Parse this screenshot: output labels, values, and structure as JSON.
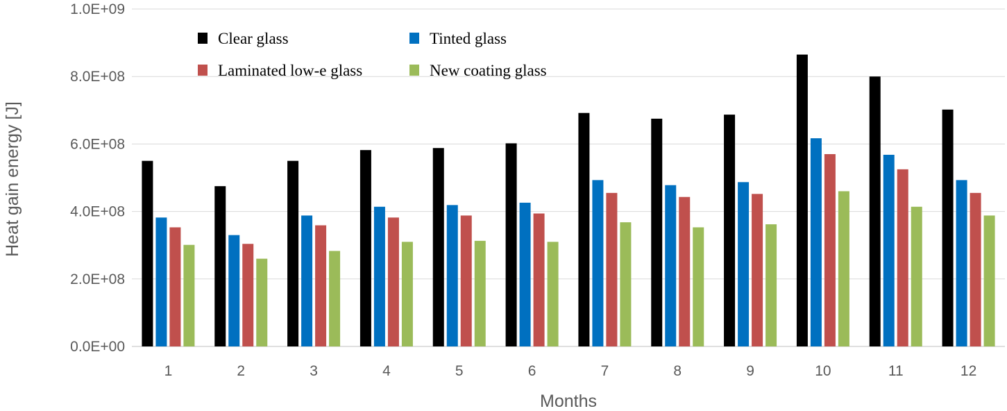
{
  "chart_data": {
    "type": "bar",
    "xlabel": "Months",
    "ylabel": "Heat gain energy [J]",
    "ylim": [
      0,
      1000000000
    ],
    "yticks": [
      {
        "value": 0,
        "label": "0.0E+00"
      },
      {
        "value": 200000000,
        "label": "2.0E+08"
      },
      {
        "value": 400000000,
        "label": "4.0E+08"
      },
      {
        "value": 600000000,
        "label": "6.0E+08"
      },
      {
        "value": 800000000,
        "label": "8.0E+08"
      },
      {
        "value": 1000000000,
        "label": "1.0E+09"
      }
    ],
    "grid": true,
    "legend_position": "top-left",
    "categories": [
      "1",
      "2",
      "3",
      "4",
      "5",
      "6",
      "7",
      "8",
      "9",
      "10",
      "11",
      "12"
    ],
    "series": [
      {
        "name": "Clear glass",
        "color": "#000000",
        "values": [
          550000000,
          475000000,
          550000000,
          582000000,
          588000000,
          602000000,
          692000000,
          675000000,
          687000000,
          865000000,
          800000000,
          702000000
        ]
      },
      {
        "name": "Tinted glass",
        "color": "#0070C0",
        "values": [
          382000000,
          330000000,
          388000000,
          414000000,
          419000000,
          426000000,
          493000000,
          478000000,
          487000000,
          617000000,
          568000000,
          493000000
        ]
      },
      {
        "name": "Laminated low-e glass",
        "color": "#C0504D",
        "values": [
          353000000,
          304000000,
          359000000,
          382000000,
          388000000,
          394000000,
          455000000,
          443000000,
          452000000,
          570000000,
          525000000,
          455000000
        ]
      },
      {
        "name": "New coating glass",
        "color": "#9BBB59",
        "values": [
          301000000,
          260000000,
          283000000,
          310000000,
          313000000,
          310000000,
          368000000,
          353000000,
          362000000,
          460000000,
          414000000,
          388000000
        ]
      }
    ]
  }
}
